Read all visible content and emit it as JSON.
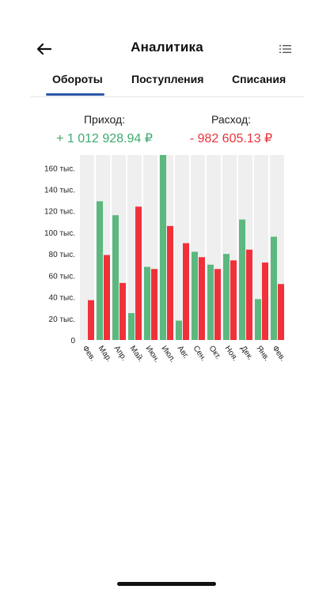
{
  "header": {
    "title": "Аналитика",
    "back_icon": "arrow-left-icon",
    "menu_icon": "list-icon"
  },
  "tabs": [
    {
      "label": "Обороты",
      "active": true
    },
    {
      "label": "Поступления",
      "active": false
    },
    {
      "label": "Списания",
      "active": false
    }
  ],
  "summary": {
    "income_label": "Приход:",
    "income_value": "+ 1 012 928.94 ₽",
    "expense_label": "Расход:",
    "expense_value": "- 982 605.13 ₽"
  },
  "colors": {
    "income": "#5cb87f",
    "expense": "#f0313a",
    "accent": "#2a56a6",
    "column_bg": "#efefef"
  },
  "chart_data": {
    "type": "bar",
    "categories": [
      "Фев.",
      "Мар.",
      "Апр.",
      "Май.",
      "Июн.",
      "Июл.",
      "Авг.",
      "Сен.",
      "Окт.",
      "Ноя.",
      "Дек.",
      "Янв.",
      "Фев."
    ],
    "series": [
      {
        "values": [
          0,
          129,
          116,
          25,
          68,
          172,
          18,
          82,
          70,
          80,
          112,
          38,
          96
        ]
      },
      {
        "values": [
          37,
          79,
          53,
          124,
          66,
          106,
          90,
          77,
          66,
          74,
          84,
          72,
          52
        ]
      }
    ],
    "y_ticks": [
      "0",
      "20 тыс.",
      "40 тыс.",
      "60 тыс.",
      "80 тыс.",
      "100 тыс.",
      "120 тыс.",
      "140 тыс.",
      "160 тыс."
    ],
    "ylim": [
      0,
      172
    ],
    "grid": false,
    "legend": "none"
  }
}
